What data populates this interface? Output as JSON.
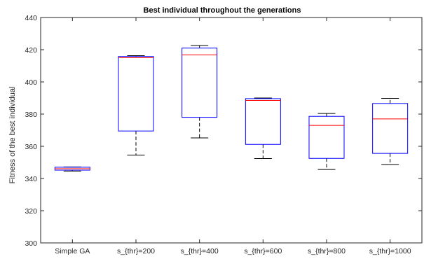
{
  "chart_data": {
    "type": "box",
    "title": "Best individual throughout the generations",
    "ylabel": "Fitness of the best individual",
    "xlabel": "",
    "ylim": [
      300,
      440
    ],
    "yticks": [
      300,
      320,
      340,
      360,
      380,
      400,
      420,
      440
    ],
    "grid": false,
    "categories": [
      "Simple GA",
      "s_{thr}=200",
      "s_{thr}=400",
      "s_{thr}=600",
      "s_{thr}=800",
      "s_{thr}=1000"
    ],
    "boxes": [
      {
        "whisker_low": 344.6,
        "q1": 345.2,
        "median": 346.1,
        "q3": 347.0,
        "whisker_high": 347.2
      },
      {
        "whisker_low": 354.5,
        "q1": 369.5,
        "median": 415.0,
        "q3": 415.8,
        "whisker_high": 416.3
      },
      {
        "whisker_low": 365.2,
        "q1": 378.0,
        "median": 416.8,
        "q3": 421.0,
        "whisker_high": 422.6
      },
      {
        "whisker_low": 352.4,
        "q1": 361.2,
        "median": 388.5,
        "q3": 389.6,
        "whisker_high": 390.0
      },
      {
        "whisker_low": 345.6,
        "q1": 352.5,
        "median": 373.0,
        "q3": 378.6,
        "whisker_high": 380.4
      },
      {
        "whisker_low": 348.6,
        "q1": 355.6,
        "median": 377.0,
        "q3": 386.6,
        "whisker_high": 389.8
      }
    ],
    "colors": {
      "box": "#0000ff",
      "median": "#ff0000",
      "whisker": "#000000",
      "axis": "#262626"
    }
  }
}
